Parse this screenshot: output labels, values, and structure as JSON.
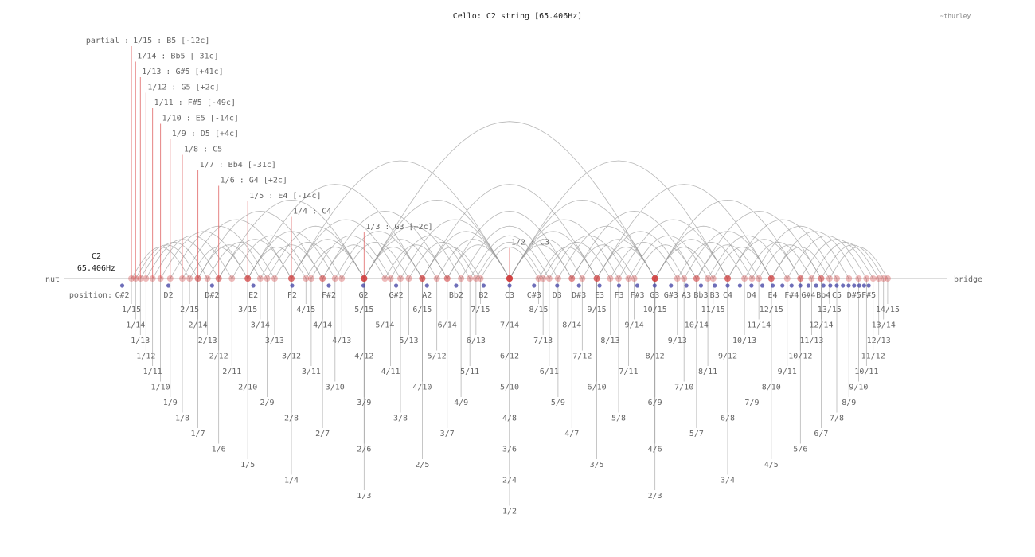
{
  "title": "Cello: C2 string [65.406Hz]",
  "credit": "~thurley",
  "nut_label": "nut",
  "bridge_label": "bridge",
  "open_string": {
    "note": "C2",
    "frequency": "65.406Hz"
  },
  "partial_prefix": "partial :",
  "position_prefix": "position:",
  "partials": [
    "1/15 : B5 [-12c]",
    "1/14 : Bb5 [-31c]",
    "1/13 : G#5 [+41c]",
    "1/12 : G5 [+2c]",
    "1/11 : F#5 [-49c]",
    "1/10 : E5 [-14c]",
    "1/9 : D5 [+4c]",
    "1/8 : C5",
    "1/7 : Bb4 [-31c]",
    "1/6 : G4 [+2c]",
    "1/5 : E4 [-14c]",
    "1/4 : C4",
    "1/3 : G3 [+2c]",
    "1/2 : C3"
  ],
  "positions": [
    "C#2",
    "D2",
    "D#2",
    "E2",
    "F2",
    "F#2",
    "G2",
    "G#2",
    "A2",
    "Bb2",
    "B2",
    "C3",
    "C#3",
    "D3",
    "D#3",
    "E3",
    "F3",
    "F#3",
    "G3",
    "G#3",
    "A3",
    "Bb3",
    "B3",
    "C4",
    null,
    "D4",
    null,
    "E4",
    null,
    "F#4",
    null,
    "G#4",
    null,
    "Bb4",
    null,
    "C5",
    null,
    null,
    "D#5",
    null,
    null,
    "F#5"
  ],
  "fractions": [
    "1/15",
    "2/15",
    "3/15",
    "4/15",
    "5/15",
    "6/15",
    "7/15",
    "8/15",
    "9/15",
    "10/15",
    "11/15",
    "12/15",
    "13/15",
    "14/15",
    "1/14",
    "2/14",
    "3/14",
    "4/14",
    "5/14",
    "6/14",
    "7/14",
    "8/14",
    "9/14",
    "10/14",
    "11/14",
    "12/14",
    "13/14",
    "1/13",
    "2/13",
    "3/13",
    "4/13",
    "5/13",
    "6/13",
    "7/13",
    "8/13",
    "9/13",
    "10/13",
    "11/13",
    "12/13",
    "1/12",
    "2/12",
    "3/12",
    "4/12",
    "5/12",
    "6/12",
    "7/12",
    "8/12",
    "9/12",
    "10/12",
    "11/12",
    "1/11",
    "2/11",
    "3/11",
    "4/11",
    "5/11",
    "6/11",
    "7/11",
    "8/11",
    "9/11",
    "10/11",
    "1/10",
    "2/10",
    "3/10",
    "4/10",
    "5/10",
    "6/10",
    "7/10",
    "8/10",
    "9/10",
    "1/9",
    "2/9",
    "3/9",
    "4/9",
    "5/9",
    "6/9",
    "7/9",
    "8/9",
    "1/8",
    "2/8",
    "3/8",
    "4/8",
    "5/8",
    "6/8",
    "7/8",
    "1/7",
    "2/7",
    "3/7",
    "4/7",
    "5/7",
    "6/7",
    "1/6",
    "2/6",
    "3/6",
    "4/6",
    "5/6",
    "1/5",
    "2/5",
    "3/5",
    "4/5",
    "1/4",
    "2/4",
    "3/4",
    "1/3",
    "2/3",
    "1/2"
  ]
}
